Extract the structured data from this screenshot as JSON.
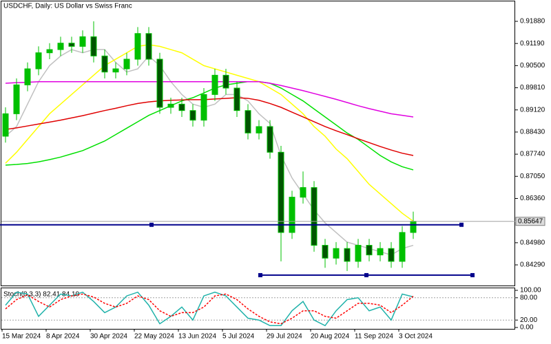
{
  "chart_data": [
    {
      "type": "candlestick",
      "title": "USDCHF, Daily:  US Dollar vs Swiss Franc",
      "categories": [
        "15 Mar 2024",
        null,
        null,
        null,
        "8 Apr 2024",
        null,
        null,
        null,
        "30 Apr 2024",
        null,
        null,
        null,
        "22 May 2024",
        null,
        null,
        null,
        "13 Jun 2024",
        null,
        null,
        null,
        "5 Jul 2024",
        null,
        null,
        null,
        "29 Jul 2024",
        null,
        null,
        null,
        "20 Aug 2024",
        null,
        null,
        null,
        "11 Sep 2024",
        null,
        null,
        null,
        "3 Oct 2024",
        null
      ],
      "open": [
        0.883,
        0.89,
        0.899,
        0.904,
        0.909,
        0.91,
        0.912,
        0.911,
        0.914,
        0.908,
        0.903,
        0.904,
        0.907,
        0.915,
        0.907,
        0.892,
        0.893,
        0.891,
        0.888,
        0.896,
        0.902,
        0.898,
        0.891,
        0.884,
        0.886,
        0.878,
        0.853,
        0.864,
        0.867,
        0.849,
        0.845,
        0.848,
        0.844,
        0.849,
        0.846,
        0.848,
        0.844,
        0.853
      ],
      "high": [
        0.892,
        0.901,
        0.906,
        0.911,
        0.912,
        0.914,
        0.914,
        0.916,
        0.9188,
        0.91,
        0.906,
        0.909,
        0.917,
        0.917,
        0.909,
        0.895,
        0.895,
        0.893,
        0.898,
        0.904,
        0.904,
        0.9,
        0.893,
        0.888,
        0.888,
        0.88,
        0.866,
        0.872,
        0.869,
        0.851,
        0.85,
        0.85,
        0.851,
        0.851,
        0.85,
        0.85,
        0.855,
        0.8595
      ],
      "low": [
        0.881,
        0.888,
        0.897,
        0.902,
        0.907,
        0.908,
        0.909,
        0.909,
        0.906,
        0.901,
        0.901,
        0.902,
        0.905,
        0.905,
        0.89,
        0.89,
        0.889,
        0.886,
        0.886,
        0.894,
        0.896,
        0.889,
        0.882,
        0.882,
        0.876,
        0.844,
        0.851,
        0.862,
        0.847,
        0.842,
        0.843,
        0.841,
        0.842,
        0.844,
        0.844,
        0.842,
        0.842,
        0.851
      ],
      "close": [
        0.89,
        0.899,
        0.904,
        0.909,
        0.91,
        0.912,
        0.911,
        0.914,
        0.908,
        0.903,
        0.904,
        0.907,
        0.915,
        0.907,
        0.892,
        0.893,
        0.891,
        0.888,
        0.896,
        0.902,
        0.898,
        0.891,
        0.884,
        0.886,
        0.878,
        0.853,
        0.864,
        0.867,
        0.849,
        0.845,
        0.848,
        0.844,
        0.849,
        0.846,
        0.848,
        0.844,
        0.853,
        0.8565
      ],
      "up_color": "#00c000",
      "down_color": "#005500",
      "series": [
        {
          "color": "#c0c0c0",
          "values": [
            0.883,
            0.886,
            0.893,
            0.9,
            0.905,
            0.908,
            0.91,
            0.909,
            0.91,
            0.91,
            0.906,
            0.903,
            0.904,
            0.908,
            0.905,
            0.9,
            0.896,
            0.893,
            0.892,
            0.893,
            0.896,
            0.896,
            0.894,
            0.89,
            0.887,
            0.877,
            0.87,
            0.865,
            0.86,
            0.856,
            0.853,
            0.85,
            0.849,
            0.848,
            0.847,
            0.846,
            0.848,
            0.849
          ]
        },
        {
          "color": "#ffff00",
          "values": [
            0.8746,
            0.878,
            0.882,
            0.886,
            0.89,
            0.893,
            0.896,
            0.899,
            0.902,
            0.905,
            0.907,
            0.909,
            0.911,
            0.9115,
            0.911,
            0.91,
            0.909,
            0.907,
            0.905,
            0.904,
            0.903,
            0.902,
            0.901,
            0.9,
            0.898,
            0.896,
            0.893,
            0.89,
            0.886,
            0.883,
            0.879,
            0.876,
            0.872,
            0.868,
            0.865,
            0.862,
            0.859,
            0.8565
          ]
        },
        {
          "color": "#00e000",
          "values": [
            0.874,
            0.8742,
            0.8745,
            0.875,
            0.8757,
            0.8765,
            0.8775,
            0.8785,
            0.88,
            0.8815,
            0.8835,
            0.8855,
            0.8875,
            0.8895,
            0.891,
            0.8925,
            0.894,
            0.895,
            0.8965,
            0.898,
            0.899,
            0.8995,
            0.9,
            0.9,
            0.8995,
            0.898,
            0.896,
            0.894,
            0.8915,
            0.889,
            0.8865,
            0.884,
            0.882,
            0.8795,
            0.877,
            0.875,
            0.8735,
            0.8725
          ]
        },
        {
          "color": "#e00000",
          "values": [
            0.8851,
            0.8856,
            0.8862,
            0.8868,
            0.8874,
            0.888,
            0.8887,
            0.8894,
            0.8902,
            0.891,
            0.8917,
            0.8925,
            0.8932,
            0.8937,
            0.894,
            0.8942,
            0.8943,
            0.8944,
            0.8944,
            0.8946,
            0.8948,
            0.895,
            0.8948,
            0.8942,
            0.8932,
            0.892,
            0.8905,
            0.889,
            0.8875,
            0.886,
            0.8847,
            0.8835,
            0.8822,
            0.881,
            0.8798,
            0.8787,
            0.8777,
            0.877
          ]
        },
        {
          "color": "#e000e0",
          "values": [
            0.8995,
            0.8997,
            0.8998,
            0.9,
            0.9,
            0.9,
            0.9,
            0.9,
            0.9,
            0.9,
            0.9,
            0.9,
            0.9,
            0.9,
            0.9,
            0.9,
            0.9,
            0.9,
            0.9,
            0.9,
            0.9,
            0.9,
            0.9,
            0.9,
            0.8995,
            0.8988,
            0.898,
            0.8972,
            0.8963,
            0.8954,
            0.8945,
            0.8935,
            0.8925,
            0.8916,
            0.8908,
            0.89,
            0.8895,
            0.889
          ]
        }
      ],
      "hlines": [
        {
          "value": 0.8554,
          "color": "#00008b"
        },
        {
          "value": 0.8397,
          "color": "#00008b"
        }
      ],
      "last_price": {
        "value": 0.85647,
        "label": "0.85647"
      },
      "ylim": [
        0.83647,
        0.92502
      ],
      "yticks": [
        {
          "value": 0.9188,
          "label": "0.91880"
        },
        {
          "value": 0.9119,
          "label": "0.91190"
        },
        {
          "value": 0.905,
          "label": "0.90500"
        },
        {
          "value": 0.8981,
          "label": "0.89810"
        },
        {
          "value": 0.8912,
          "label": "0.89120"
        },
        {
          "value": 0.8843,
          "label": "0.88430"
        },
        {
          "value": 0.8774,
          "label": "0.87740"
        },
        {
          "value": 0.8705,
          "label": "0.87050"
        },
        {
          "value": 0.8636,
          "label": "0.86360"
        },
        {
          "value": 0.8498,
          "label": "0.84980"
        },
        {
          "value": 0.8429,
          "label": "0.84290"
        }
      ]
    },
    {
      "type": "line",
      "title": "Stoch(8,3,3) 82.41 84.10",
      "series": [
        {
          "color": "#20b2aa",
          "values": [
            60,
            95,
            90,
            30,
            60,
            90,
            85,
            95,
            70,
            40,
            55,
            85,
            95,
            60,
            10,
            30,
            55,
            20,
            85,
            95,
            85,
            55,
            25,
            20,
            5,
            5,
            45,
            70,
            20,
            5,
            45,
            75,
            80,
            45,
            55,
            20,
            90,
            82.41
          ]
        },
        {
          "color": "#ff0000",
          "dash": true,
          "values": [
            50,
            75,
            88,
            70,
            55,
            75,
            85,
            90,
            82,
            65,
            55,
            65,
            85,
            75,
            45,
            30,
            40,
            40,
            55,
            85,
            90,
            75,
            50,
            30,
            15,
            10,
            25,
            45,
            45,
            30,
            25,
            45,
            65,
            65,
            60,
            40,
            60,
            84.1
          ]
        }
      ],
      "level_lines": [
        80,
        20
      ],
      "ylim": [
        -3.7,
        107.4
      ],
      "yticks": [
        {
          "value": 100,
          "label": "100.00"
        },
        {
          "value": 80,
          "label": "80.00"
        },
        {
          "value": 20,
          "label": "20.00"
        },
        {
          "value": 0,
          "label": "0.00"
        }
      ]
    }
  ]
}
